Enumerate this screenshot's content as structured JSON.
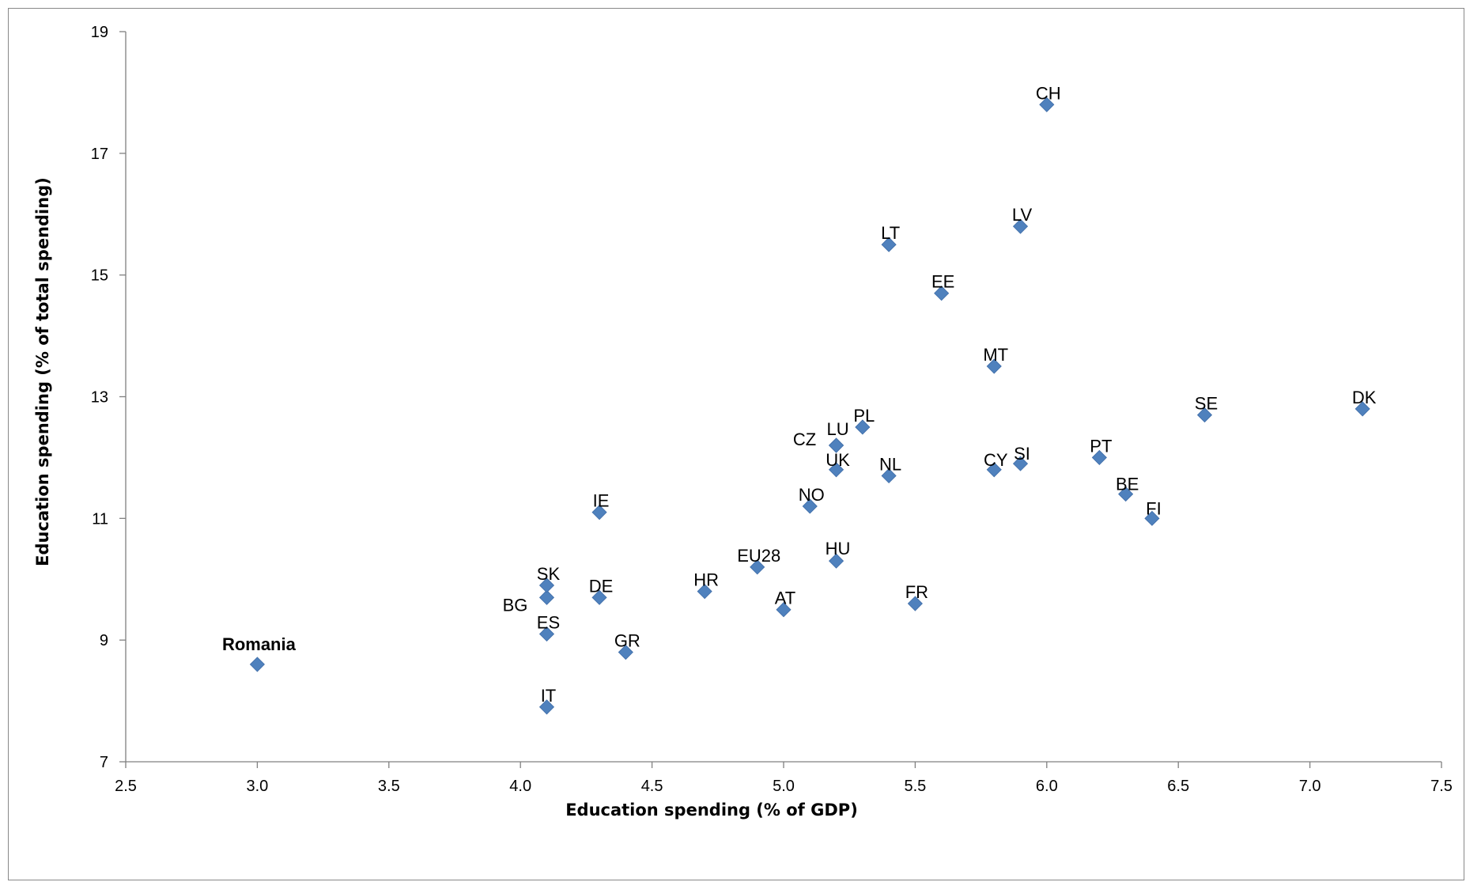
{
  "chart_data": {
    "type": "scatter",
    "title": "",
    "xlabel": "Education spending (% of GDP)",
    "ylabel": "Education spending (% of total spending)",
    "xlim": [
      2.5,
      7.5
    ],
    "ylim": [
      7,
      19
    ],
    "x_ticks": [
      "2.5",
      "3.0",
      "3.5",
      "4.0",
      "4.5",
      "5.0",
      "5.5",
      "6.0",
      "6.5",
      "7.0",
      "7.5"
    ],
    "y_ticks": [
      "7",
      "9",
      "11",
      "13",
      "15",
      "17",
      "19"
    ],
    "grid": false,
    "legend": "none",
    "marker": "diamond",
    "marker_color": "#4F81BD",
    "highlight_color": "#FF0000",
    "points": [
      {
        "label": "Romania",
        "x": 3.0,
        "y": 8.6,
        "highlight": true
      },
      {
        "label": "IT",
        "x": 4.1,
        "y": 7.9
      },
      {
        "label": "ES",
        "x": 4.1,
        "y": 9.1
      },
      {
        "label": "BG",
        "x": 4.1,
        "y": 9.7
      },
      {
        "label": "SK",
        "x": 4.1,
        "y": 9.9
      },
      {
        "label": "DE",
        "x": 4.3,
        "y": 9.7
      },
      {
        "label": "GR",
        "x": 4.4,
        "y": 8.8
      },
      {
        "label": "IE",
        "x": 4.3,
        "y": 11.1
      },
      {
        "label": "HR",
        "x": 4.7,
        "y": 9.8
      },
      {
        "label": "EU28",
        "x": 4.9,
        "y": 10.2
      },
      {
        "label": "AT",
        "x": 5.0,
        "y": 9.5
      },
      {
        "label": "NO",
        "x": 5.1,
        "y": 11.2
      },
      {
        "label": "HU",
        "x": 5.2,
        "y": 10.3
      },
      {
        "label": "UK",
        "x": 5.2,
        "y": 11.8
      },
      {
        "label": "CZ",
        "x": 5.2,
        "y": 12.2
      },
      {
        "label": "LU",
        "x": 5.2,
        "y": 12.2
      },
      {
        "label": "PL",
        "x": 5.3,
        "y": 12.5
      },
      {
        "label": "NL",
        "x": 5.4,
        "y": 11.7
      },
      {
        "label": "LT",
        "x": 5.4,
        "y": 15.5
      },
      {
        "label": "FR",
        "x": 5.5,
        "y": 9.6
      },
      {
        "label": "EE",
        "x": 5.6,
        "y": 14.7
      },
      {
        "label": "MT",
        "x": 5.8,
        "y": 13.5
      },
      {
        "label": "CY",
        "x": 5.8,
        "y": 11.8
      },
      {
        "label": "SI",
        "x": 5.9,
        "y": 11.9
      },
      {
        "label": "LV",
        "x": 5.9,
        "y": 15.8
      },
      {
        "label": "CH",
        "x": 6.0,
        "y": 17.8
      },
      {
        "label": "PT",
        "x": 6.2,
        "y": 12.0
      },
      {
        "label": "BE",
        "x": 6.3,
        "y": 11.4
      },
      {
        "label": "FI",
        "x": 6.4,
        "y": 11.0
      },
      {
        "label": "SE",
        "x": 6.6,
        "y": 12.7
      },
      {
        "label": "DK",
        "x": 7.2,
        "y": 12.8
      }
    ]
  }
}
